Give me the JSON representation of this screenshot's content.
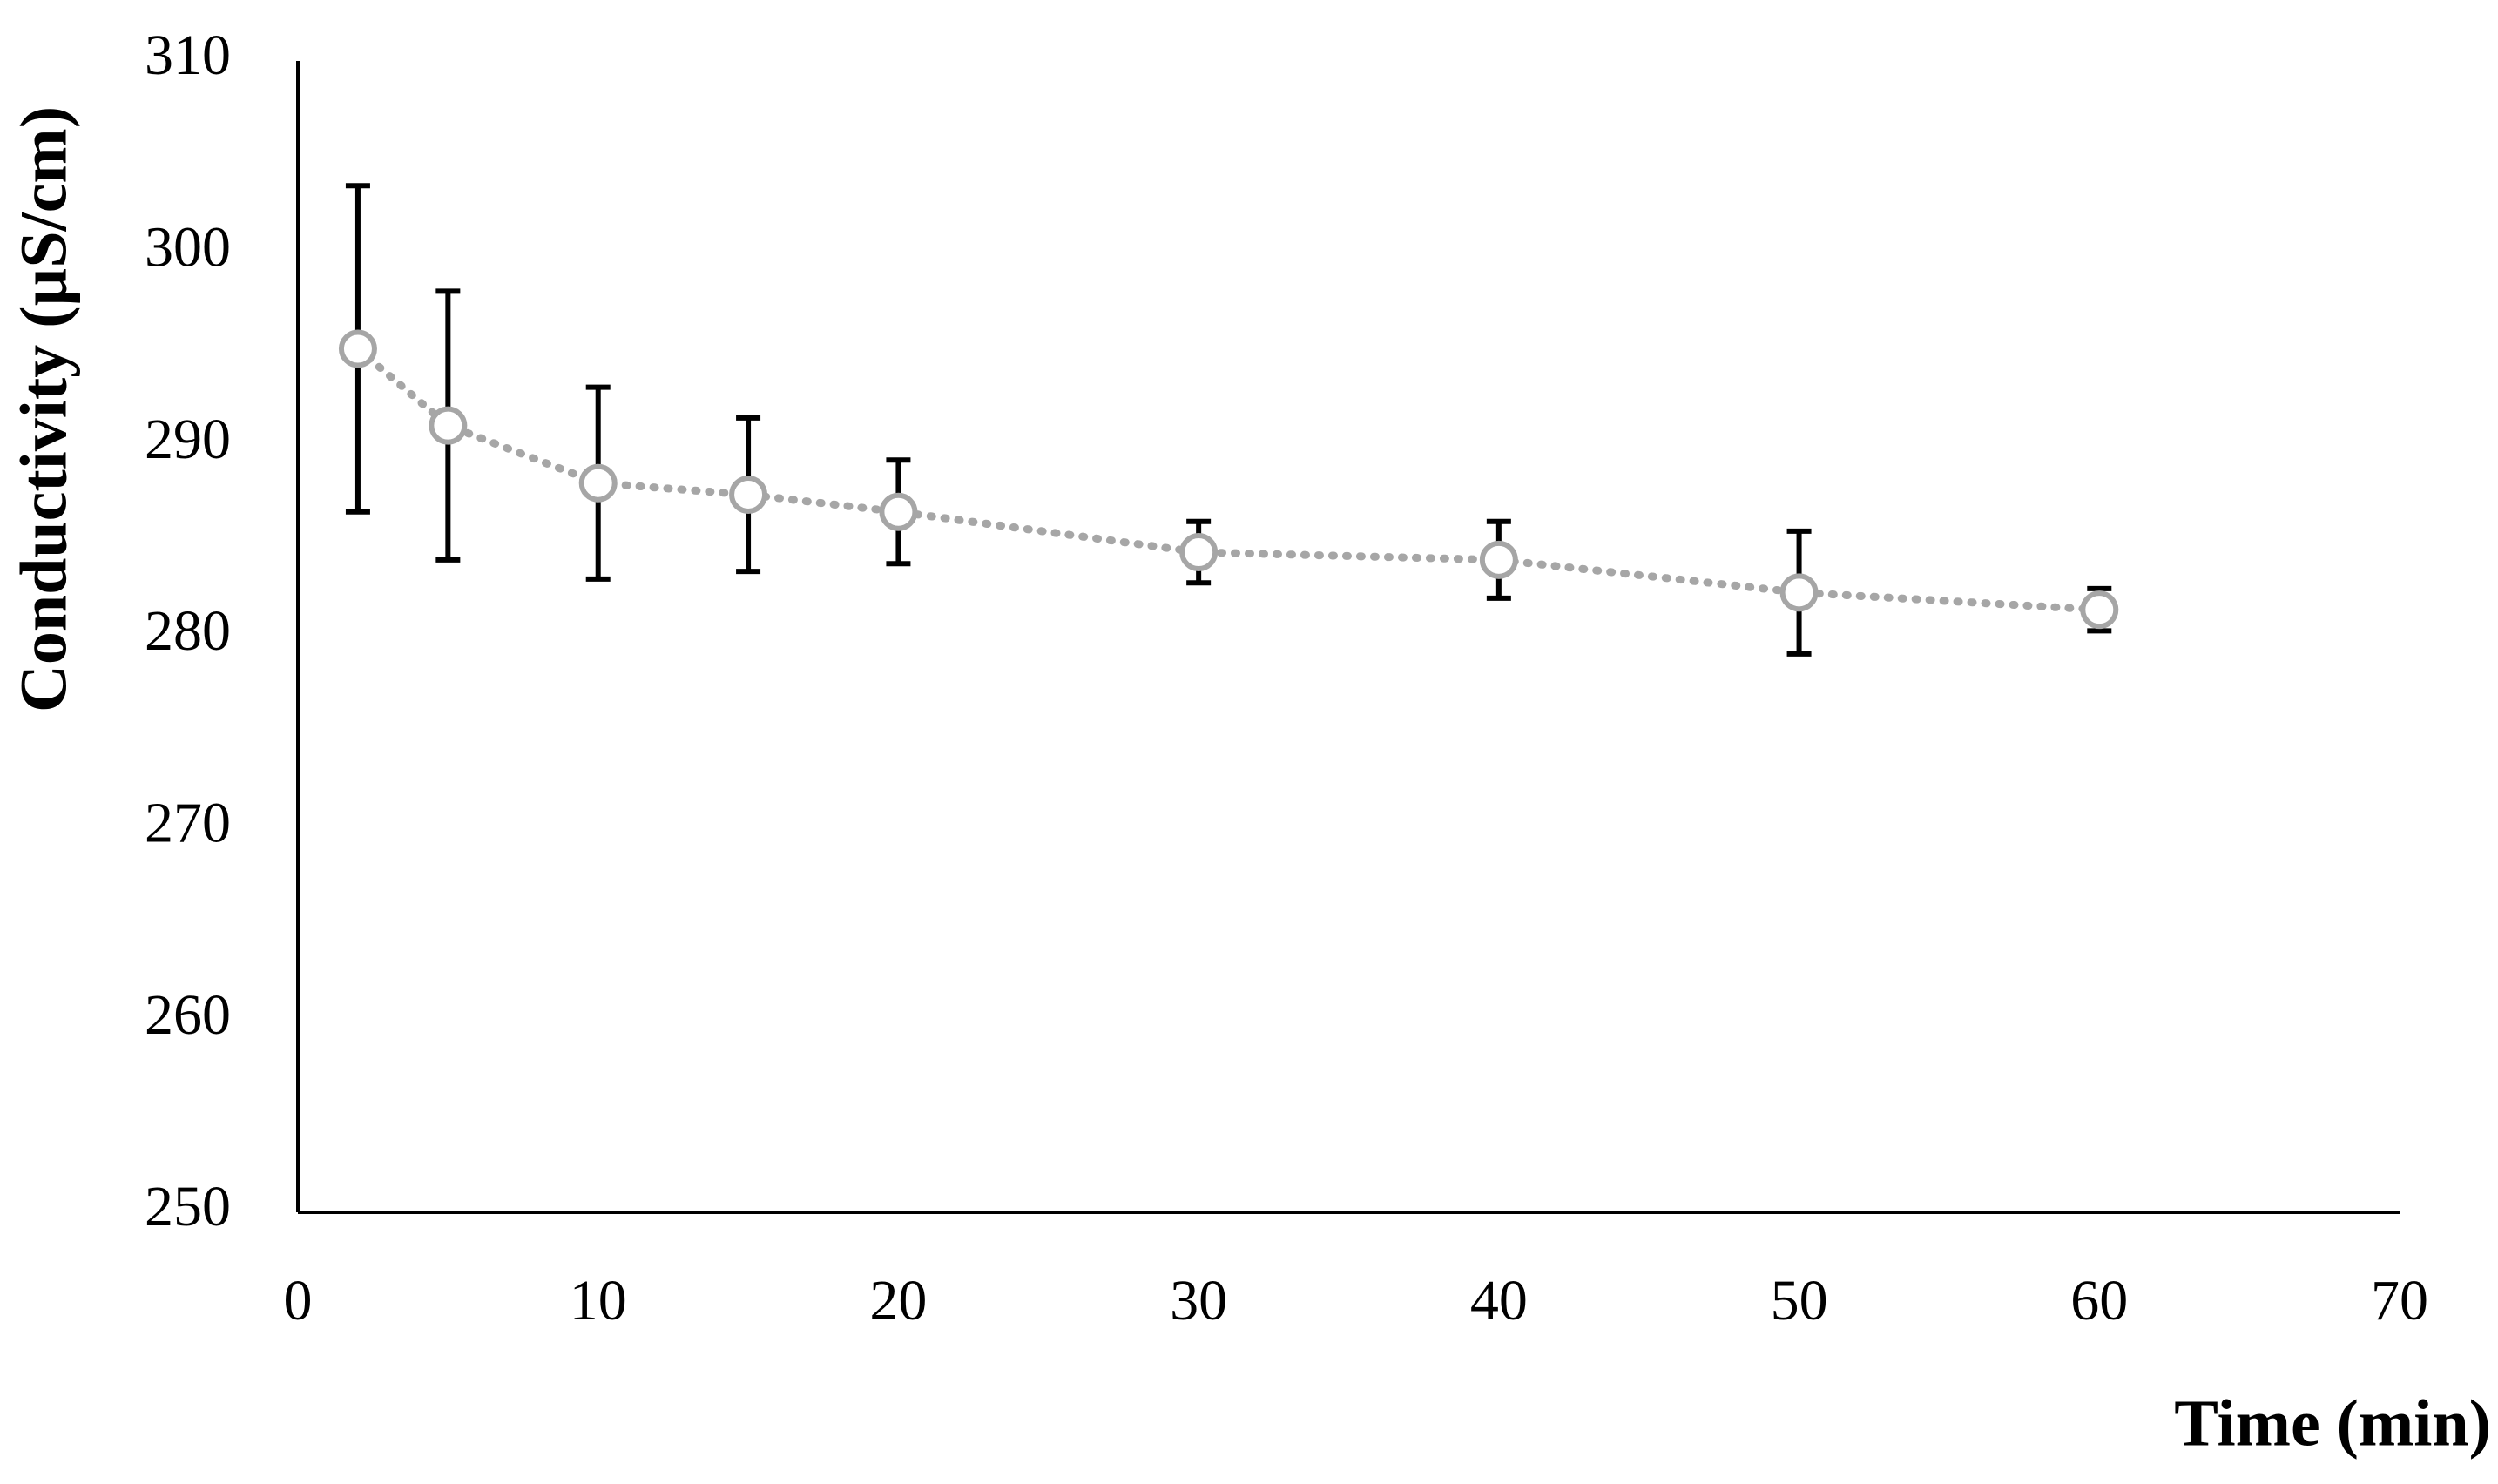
{
  "chart_data": {
    "type": "line",
    "x_label": "Time (min)",
    "y_label": "Conductivity (µS/cm)",
    "x": [
      2,
      5,
      10,
      15,
      20,
      30,
      40,
      50,
      60
    ],
    "values": [
      295,
      291,
      288,
      287.4,
      286.5,
      284.4,
      284,
      282.3,
      281.4
    ],
    "errors": [
      8.5,
      7,
      5,
      4,
      2.7,
      1.6,
      2,
      3.2,
      1.1
    ],
    "color": "#a6a6a6",
    "error_color": "#000000",
    "xlim": [
      0,
      70
    ],
    "xticks": [
      0,
      10,
      20,
      30,
      40,
      50,
      60,
      70
    ],
    "ylim": [
      250,
      310
    ],
    "yticks": [
      250,
      260,
      270,
      280,
      290,
      300,
      310
    ],
    "grid": false
  }
}
